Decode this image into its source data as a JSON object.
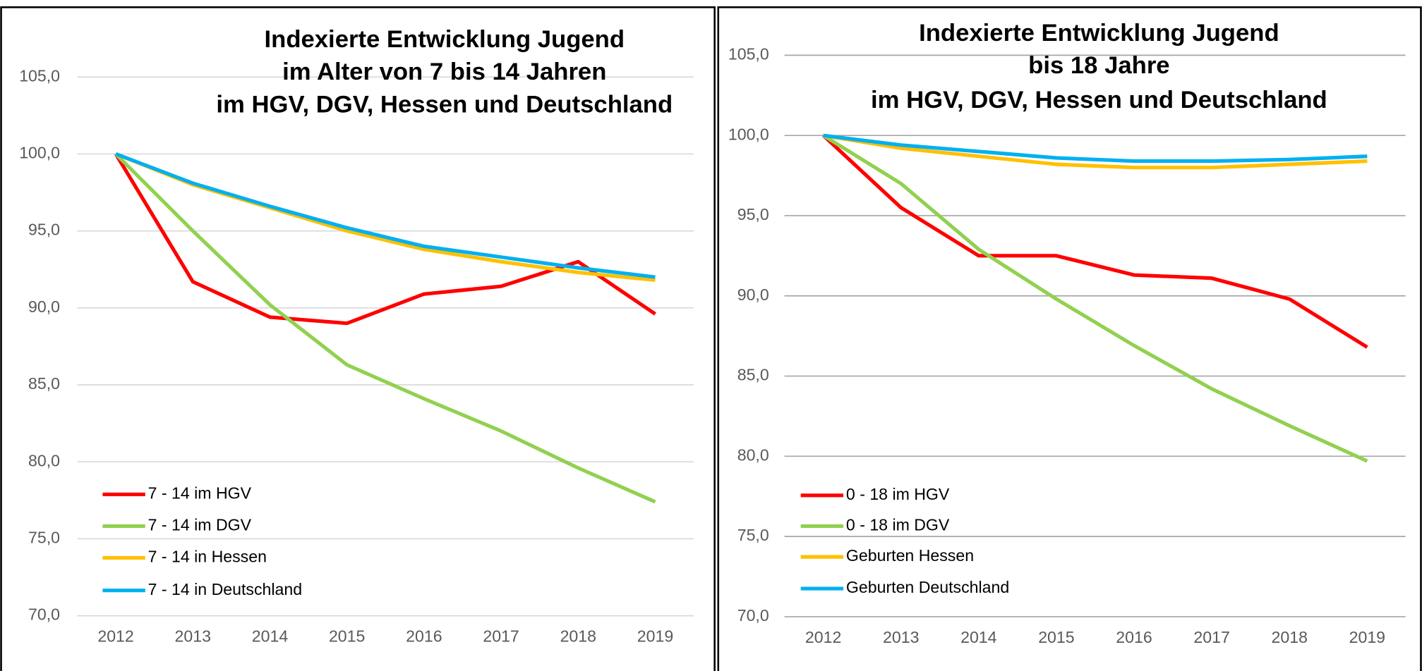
{
  "chart_data": [
    {
      "type": "line",
      "title": [
        "Indexierte Entwicklung Jugend",
        "im Alter von 7 bis 14 Jahren",
        "im HGV, DGV, Hessen und Deutschland"
      ],
      "categories": [
        "2012",
        "2013",
        "2014",
        "2015",
        "2016",
        "2017",
        "2018",
        "2019"
      ],
      "series": [
        {
          "name": "7 - 14 im HGV",
          "color": "#ff0000",
          "values": [
            100.0,
            91.7,
            89.4,
            89.0,
            90.9,
            91.4,
            93.0,
            89.6
          ]
        },
        {
          "name": "7 - 14 im DGV",
          "color": "#92d050",
          "values": [
            100.0,
            95.0,
            90.2,
            86.3,
            84.1,
            82.0,
            79.6,
            77.4
          ]
        },
        {
          "name": "7 - 14 in Hessen",
          "color": "#ffc000",
          "values": [
            100.0,
            98.0,
            96.5,
            95.0,
            93.8,
            93.0,
            92.3,
            91.8
          ]
        },
        {
          "name": "7 - 14 in Deutschland",
          "color": "#00b0f0",
          "values": [
            100.0,
            98.1,
            96.6,
            95.2,
            94.0,
            93.3,
            92.6,
            92.0
          ]
        }
      ],
      "ylim": [
        70,
        105
      ],
      "yticks": [
        {
          "value": 70,
          "label": "70,0"
        },
        {
          "value": 75,
          "label": "75,0"
        },
        {
          "value": 80,
          "label": "80,0"
        },
        {
          "value": 85,
          "label": "85,0"
        },
        {
          "value": 90,
          "label": "90,0"
        },
        {
          "value": 95,
          "label": "95,0"
        },
        {
          "value": 100,
          "label": "100,0"
        },
        {
          "value": 105,
          "label": "105,0"
        }
      ],
      "grid": true,
      "grid_color": "#d9d9d9",
      "legend": "lower left"
    },
    {
      "type": "line",
      "title": [
        "Indexierte Entwicklung Jugend",
        "bis 18 Jahre",
        "im HGV, DGV, Hessen und Deutschland"
      ],
      "categories": [
        "2012",
        "2013",
        "2014",
        "2015",
        "2016",
        "2017",
        "2018",
        "2019"
      ],
      "series": [
        {
          "name": "0 - 18 im HGV",
          "color": "#ff0000",
          "values": [
            100.0,
            95.5,
            92.5,
            92.5,
            91.3,
            91.1,
            89.8,
            86.8
          ]
        },
        {
          "name": "0 - 18 im DGV",
          "color": "#92d050",
          "values": [
            100.0,
            97.0,
            92.9,
            89.8,
            86.9,
            84.2,
            81.9,
            79.7
          ]
        },
        {
          "name": "Geburten Hessen",
          "color": "#ffc000",
          "values": [
            100.0,
            99.2,
            98.7,
            98.2,
            98.0,
            98.0,
            98.2,
            98.4
          ]
        },
        {
          "name": "Geburten Deutschland",
          "color": "#00b0f0",
          "values": [
            100.0,
            99.4,
            99.0,
            98.6,
            98.4,
            98.4,
            98.5,
            98.7
          ]
        }
      ],
      "ylim": [
        70,
        105
      ],
      "yticks": [
        {
          "value": 70,
          "label": "70,0"
        },
        {
          "value": 75,
          "label": "75,0"
        },
        {
          "value": 80,
          "label": "80,0"
        },
        {
          "value": 85,
          "label": "85,0"
        },
        {
          "value": 90,
          "label": "90,0"
        },
        {
          "value": 95,
          "label": "95,0"
        },
        {
          "value": 100,
          "label": "100,0"
        },
        {
          "value": 105,
          "label": "105,0"
        }
      ],
      "grid": true,
      "grid_color": "#a6a6a6",
      "legend": "lower left"
    }
  ]
}
